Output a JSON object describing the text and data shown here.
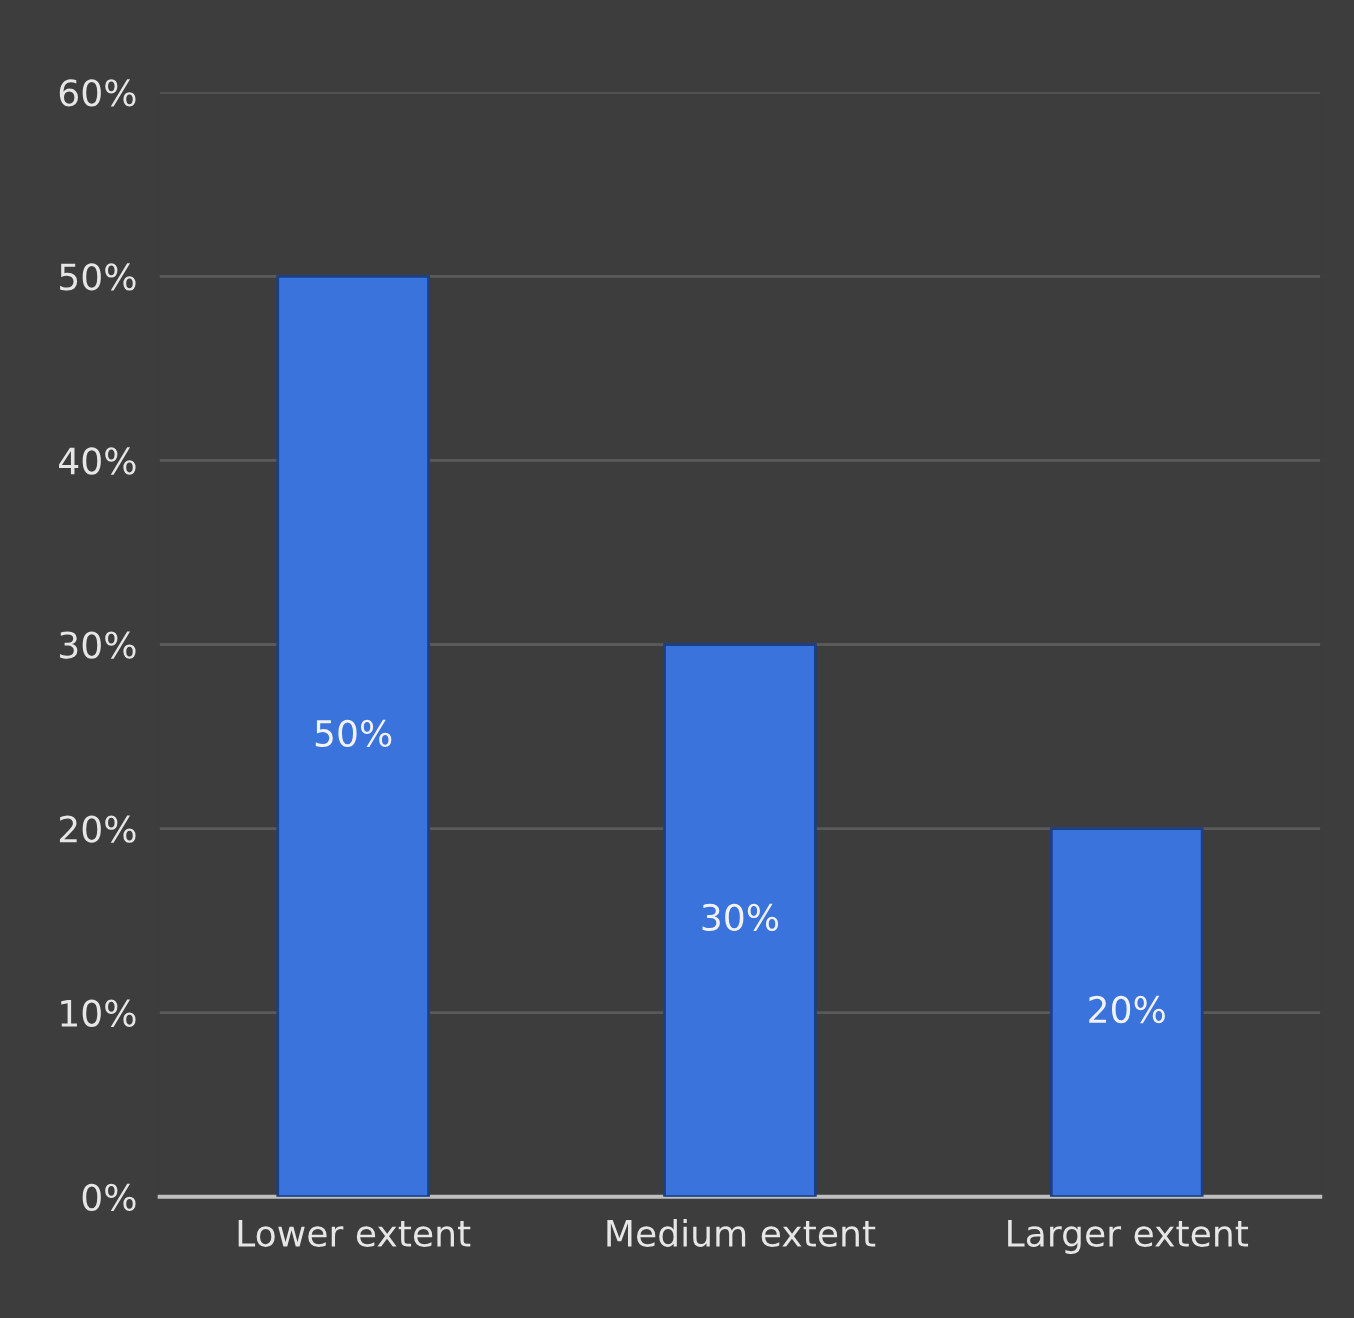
{
  "chart_data": {
    "type": "bar",
    "categories": [
      "Lower extent",
      "Medium extent",
      "Larger extent"
    ],
    "values": [
      50,
      30,
      20
    ],
    "value_labels": [
      "50%",
      "30%",
      "20%"
    ],
    "color": "#3a73db",
    "ylim": [
      0,
      60
    ],
    "yticks": [
      {
        "value": 0,
        "label": "0%"
      },
      {
        "value": 10,
        "label": "10%"
      },
      {
        "value": 20,
        "label": "20%"
      },
      {
        "value": 30,
        "label": "30%"
      },
      {
        "value": 40,
        "label": "40%"
      },
      {
        "value": 50,
        "label": "50%"
      },
      {
        "value": 60,
        "label": "60%"
      }
    ],
    "grid": "y"
  }
}
